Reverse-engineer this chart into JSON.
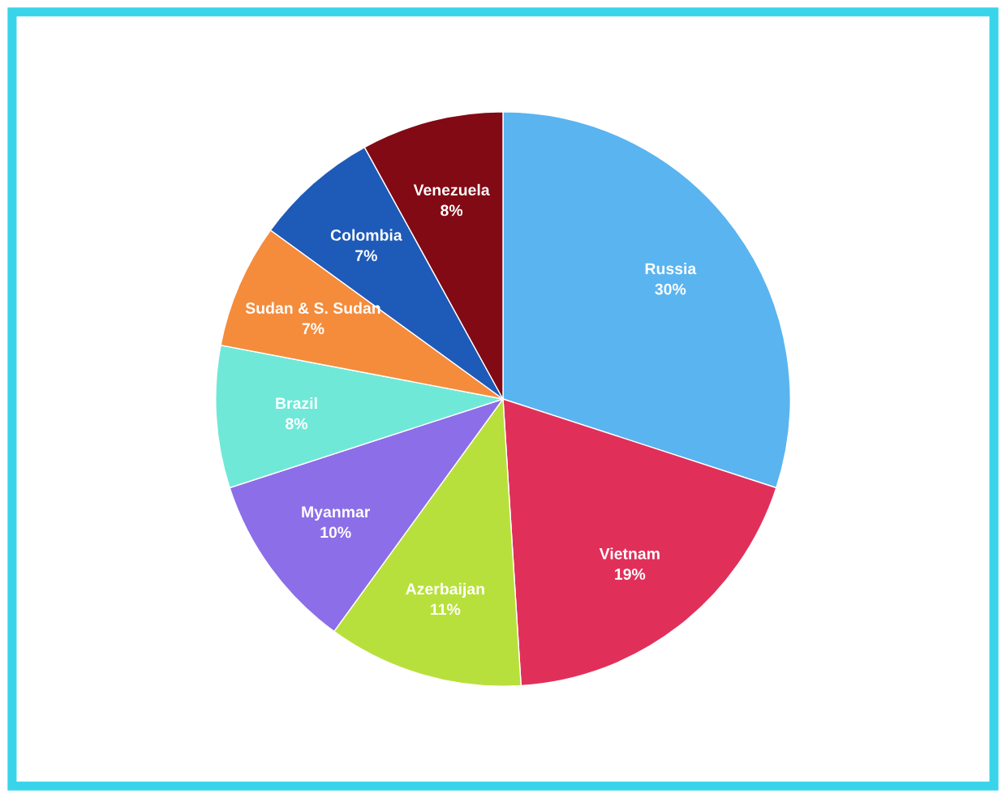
{
  "chart_data": {
    "type": "pie",
    "categories": [
      "Russia",
      "Vietnam",
      "Azerbaijan",
      "Myanmar",
      "Brazil",
      "Sudan & S. Sudan",
      "Colombia",
      "Venezuela"
    ],
    "values": [
      30,
      19,
      11,
      10,
      8,
      7,
      7,
      8
    ],
    "colors": [
      "#5ab4f0",
      "#e0305a",
      "#b8e03c",
      "#8c6ee8",
      "#70e8d8",
      "#f48c3c",
      "#1e5ab8",
      "#820a14"
    ],
    "value_labels": [
      "30%",
      "19%",
      "11%",
      "10%",
      "8%",
      "7%",
      "7%",
      "8%"
    ],
    "legend": false
  }
}
